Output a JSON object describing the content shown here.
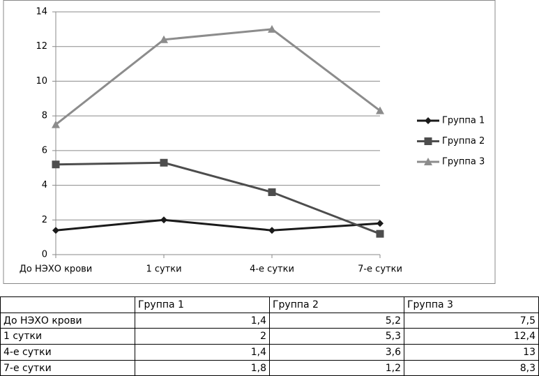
{
  "chart_data": {
    "type": "line",
    "categories": [
      "До НЭХО крови",
      "1 сутки",
      "4-е сутки",
      "7-е сутки"
    ],
    "series": [
      {
        "name": "Группа 1",
        "color": "#1a1a1a",
        "marker": "diamond",
        "values": [
          1.4,
          2,
          1.4,
          1.8
        ]
      },
      {
        "name": "Группа 2",
        "color": "#4d4d4d",
        "marker": "square",
        "values": [
          5.2,
          5.3,
          3.6,
          1.2
        ]
      },
      {
        "name": "Группа 3",
        "color": "#8c8c8c",
        "marker": "triangle",
        "values": [
          7.5,
          12.4,
          13,
          8.3
        ]
      }
    ],
    "ylim": [
      0,
      14
    ],
    "yticks": [
      0,
      2,
      4,
      6,
      8,
      10,
      12,
      14
    ],
    "grid": true,
    "legend": "right"
  },
  "table": {
    "cells": [
      [
        "1,4",
        "5,2",
        "7,5"
      ],
      [
        "2",
        "5,3",
        "12,4"
      ],
      [
        "1,4",
        "3,6",
        "13"
      ],
      [
        "1,8",
        "1,2",
        "8,3"
      ]
    ]
  }
}
